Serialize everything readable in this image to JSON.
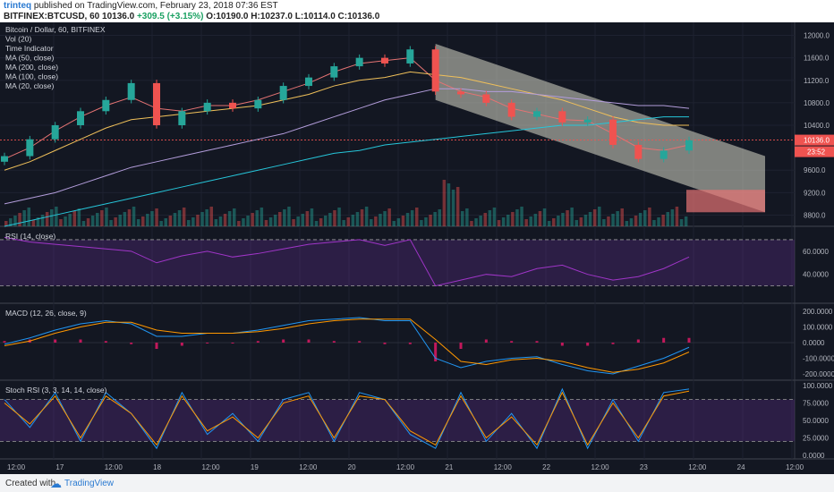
{
  "header": {
    "user": "trinteq",
    "published_text": "published on TradingView.com, February 23, 2018 07:36 EST",
    "symbol": "BITFINEX:BTCUSD, 60",
    "last": "10136.0",
    "change": "+309.5 (+3.15%)",
    "ohlc": "O:10190.0 H:10237.0 L:10114.0 C:10136.0"
  },
  "legend": [
    "Bitcoin / Dollar, 60, BITFINEX",
    "Vol (20)",
    "Time Indicator",
    "MA (50, close)",
    "MA (200, close)",
    "MA (100, close)",
    "MA (20, close)"
  ],
  "price_axis_labels": [
    "12000.0",
    "11600.0",
    "11200.0",
    "10800.0",
    "10400.0",
    "9600.0",
    "9200.0",
    "8800.0"
  ],
  "price_tags": {
    "last": "10136.0",
    "countdown": "23:52"
  },
  "rsi": {
    "title": "RSI (14, close)",
    "axis": [
      "60.0000",
      "40.0000"
    ]
  },
  "macd": {
    "title": "MACD (12, 26, close, 9)",
    "axis": [
      "200.0000",
      "100.0000",
      "0.0000",
      "-100.0000",
      "-200.0000"
    ]
  },
  "stoch": {
    "title": "Stoch RSI (3, 3, 14, 14, close)",
    "axis": [
      "100.0000",
      "75.0000",
      "50.0000",
      "25.0000",
      "0.0000"
    ]
  },
  "time_axis": [
    "12:00",
    "17",
    "12:00",
    "18",
    "12:00",
    "19",
    "12:00",
    "20",
    "12:00",
    "21",
    "12:00",
    "22",
    "12:00",
    "23",
    "12:00",
    "24",
    "12:00"
  ],
  "footer": {
    "created": "Created with",
    "brand": "TradingView"
  },
  "colors": {
    "bg": "#131722",
    "up": "#26a69a",
    "down": "#ef5350",
    "ma20": "#e57373",
    "ma50": "#f0c05a",
    "ma100": "#b39ddb",
    "ma200": "#26c6da",
    "channel": "#d8d8c8"
  },
  "chart_data": {
    "type": "candlestick",
    "title": "Bitcoin / Dollar, 60, BITFINEX",
    "timeframe": "60",
    "ylim": [
      8600,
      12200
    ],
    "xlabel": "",
    "ylabel": "",
    "series": [
      {
        "name": "BTCUSD close (approx)",
        "x": [
          "16 18:00",
          "17 00:00",
          "17 06:00",
          "17 12:00",
          "17 18:00",
          "18 00:00",
          "18 06:00",
          "18 12:00",
          "18 18:00",
          "19 00:00",
          "19 06:00",
          "19 12:00",
          "19 18:00",
          "20 00:00",
          "20 06:00",
          "20 12:00",
          "20 18:00",
          "21 00:00",
          "21 06:00",
          "21 12:00",
          "21 18:00",
          "22 00:00",
          "22 06:00",
          "22 12:00",
          "22 18:00",
          "23 00:00",
          "23 06:00",
          "23 12:00"
        ],
        "values": [
          9850,
          10150,
          10400,
          10650,
          10850,
          11150,
          10400,
          10650,
          10800,
          10700,
          10850,
          11100,
          11250,
          11450,
          11600,
          11500,
          11750,
          11000,
          10950,
          10800,
          10550,
          10650,
          10450,
          10500,
          10050,
          9800,
          9950,
          10136
        ]
      },
      {
        "name": "MA (20, close)",
        "values": [
          9800,
          10000,
          10300,
          10550,
          10750,
          10900,
          10700,
          10650,
          10750,
          10750,
          10850,
          11000,
          11150,
          11350,
          11500,
          11550,
          11600,
          11200,
          11000,
          10900,
          10700,
          10600,
          10500,
          10480,
          10250,
          10000,
          9950,
          10050
        ]
      },
      {
        "name": "MA (50, close)",
        "values": [
          9600,
          9750,
          9950,
          10150,
          10350,
          10500,
          10550,
          10600,
          10650,
          10700,
          10750,
          10850,
          10950,
          11100,
          11200,
          11250,
          11350,
          11300,
          11250,
          11150,
          11050,
          10950,
          10850,
          10700,
          10550,
          10450,
          10400,
          10400
        ]
      },
      {
        "name": "MA (100, close)",
        "values": [
          9000,
          9100,
          9200,
          9350,
          9500,
          9650,
          9750,
          9850,
          9950,
          10050,
          10150,
          10250,
          10400,
          10550,
          10700,
          10850,
          10950,
          11050,
          11050,
          11000,
          11000,
          10950,
          10900,
          10850,
          10800,
          10750,
          10750,
          10700
        ]
      },
      {
        "name": "MA (200, close)",
        "values": [
          8600,
          8700,
          8800,
          8900,
          9000,
          9100,
          9200,
          9300,
          9400,
          9500,
          9600,
          9700,
          9800,
          9900,
          9950,
          10050,
          10100,
          10150,
          10200,
          10250,
          10300,
          10350,
          10400,
          10400,
          10450,
          10500,
          10550,
          10550
        ]
      },
      {
        "name": "RSI (14, close)",
        "values": [
          72,
          68,
          66,
          64,
          62,
          60,
          50,
          56,
          60,
          55,
          58,
          62,
          66,
          68,
          70,
          65,
          70,
          30,
          35,
          40,
          38,
          45,
          48,
          40,
          35,
          38,
          45,
          55
        ]
      },
      {
        "name": "MACD",
        "values": [
          -10,
          30,
          80,
          120,
          140,
          120,
          40,
          40,
          60,
          60,
          80,
          110,
          140,
          150,
          160,
          140,
          140,
          -100,
          -160,
          -120,
          -100,
          -90,
          -140,
          -180,
          -200,
          -150,
          -100,
          -30
        ]
      },
      {
        "name": "MACD signal",
        "values": [
          -20,
          10,
          60,
          100,
          130,
          130,
          80,
          60,
          60,
          60,
          70,
          90,
          120,
          140,
          150,
          150,
          150,
          20,
          -120,
          -140,
          -110,
          -100,
          -120,
          -160,
          -190,
          -170,
          -130,
          -60
        ]
      },
      {
        "name": "Stoch K",
        "values": [
          80,
          40,
          90,
          20,
          90,
          60,
          10,
          90,
          30,
          60,
          20,
          80,
          90,
          20,
          90,
          80,
          30,
          10,
          90,
          20,
          60,
          10,
          95,
          10,
          80,
          20,
          90,
          95
        ]
      },
      {
        "name": "Stoch D",
        "values": [
          75,
          45,
          85,
          25,
          85,
          60,
          15,
          85,
          35,
          55,
          25,
          75,
          85,
          25,
          85,
          80,
          35,
          15,
          85,
          25,
          55,
          15,
          90,
          15,
          75,
          25,
          85,
          92
        ]
      }
    ],
    "annotations": [
      "descending channel drawn from 21 00:00 to 24 18:00",
      "projected target box 8850-9250"
    ]
  }
}
